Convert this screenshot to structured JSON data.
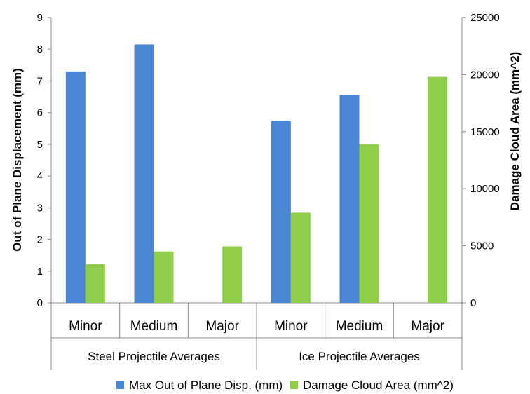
{
  "chart_data": {
    "type": "bar",
    "groups": [
      {
        "label": "Steel Projectile Averages",
        "categories": [
          "Minor",
          "Medium",
          "Major"
        ]
      },
      {
        "label": "Ice Projectile Averages",
        "categories": [
          "Minor",
          "Medium",
          "Major"
        ]
      }
    ],
    "categories": [
      "Minor",
      "Medium",
      "Major",
      "Minor",
      "Medium",
      "Major"
    ],
    "series": [
      {
        "name": "Max Out of Plane Disp. (mm)",
        "axis": "left",
        "color": "#4a86d4",
        "values": [
          7.3,
          8.15,
          null,
          5.75,
          6.55,
          null
        ]
      },
      {
        "name": "Damage Cloud Area (mm^2)",
        "axis": "right",
        "color": "#8fce4b",
        "values": [
          3400,
          4500,
          4950,
          7900,
          13900,
          19800
        ]
      }
    ],
    "ylabel": "Out of Plane Displacement (mm)",
    "y2label": "Damage Cloud Area (mm^2)",
    "ylim": [
      0,
      9
    ],
    "y2lim": [
      0,
      25000
    ],
    "yticks": [
      0,
      1,
      2,
      3,
      4,
      5,
      6,
      7,
      8,
      9
    ],
    "y2ticks": [
      0,
      5000,
      10000,
      15000,
      20000,
      25000
    ],
    "grid": false,
    "legend_position": "bottom"
  }
}
